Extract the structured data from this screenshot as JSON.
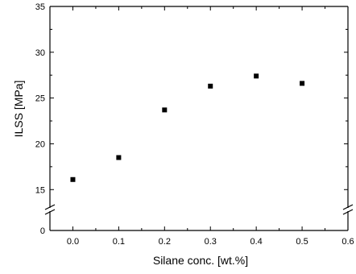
{
  "chart_data": {
    "type": "scatter",
    "title": "",
    "xlabel": "Silane conc. [wt.%]",
    "ylabel": "ILSS [MPa]",
    "xlim": [
      -0.05,
      0.6
    ],
    "ylim": [
      0,
      35
    ],
    "axis_break": [
      5,
      13
    ],
    "grid": false,
    "x_ticks": [
      0.0,
      0.1,
      0.2,
      0.3,
      0.4,
      0.5,
      0.6
    ],
    "x_tick_labels": [
      "0.0",
      "0.1",
      "0.2",
      "0.3",
      "0.4",
      "0.5",
      "0.6"
    ],
    "y_ticks": [
      0,
      15,
      20,
      25,
      30,
      35
    ],
    "y_tick_labels": [
      "0",
      "15",
      "20",
      "25",
      "30",
      "35"
    ],
    "series": [
      {
        "x": [
          0.0,
          0.1,
          0.2,
          0.3,
          0.4,
          0.5
        ],
        "y": [
          16.1,
          18.5,
          23.7,
          26.3,
          27.4,
          26.6
        ],
        "marker": "square",
        "color": "#000000"
      }
    ]
  }
}
